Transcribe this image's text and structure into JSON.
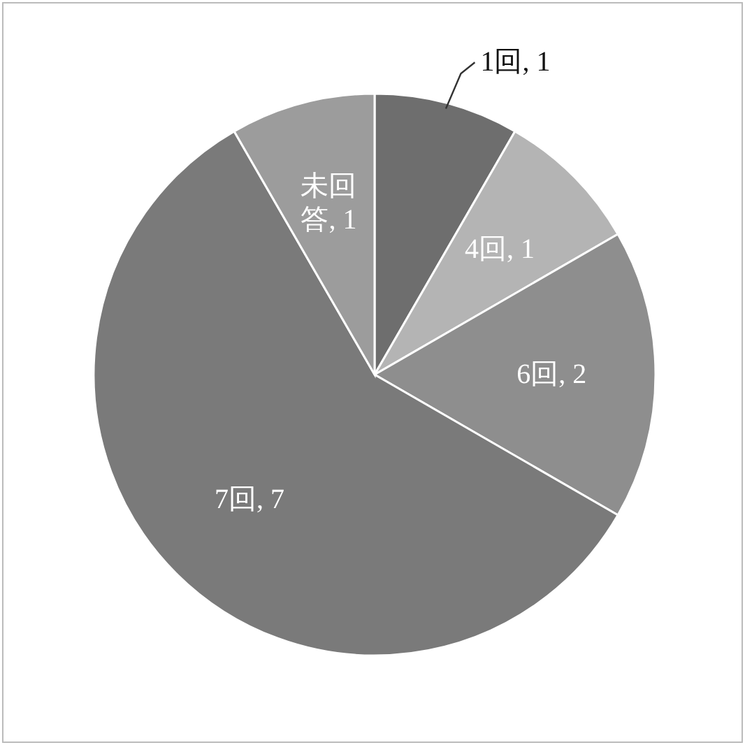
{
  "chart_data": {
    "type": "pie",
    "categories": [
      "1回",
      "4回",
      "6回",
      "7回",
      "未回答"
    ],
    "values": [
      1,
      1,
      2,
      7,
      1
    ],
    "colors": [
      "#6e6e6e",
      "#b4b4b4",
      "#8e8e8e",
      "#7a7a7a",
      "#9c9c9c"
    ],
    "value_labels": [
      ", 1",
      ", 1",
      ", 2",
      ", 7",
      ", 1"
    ]
  }
}
